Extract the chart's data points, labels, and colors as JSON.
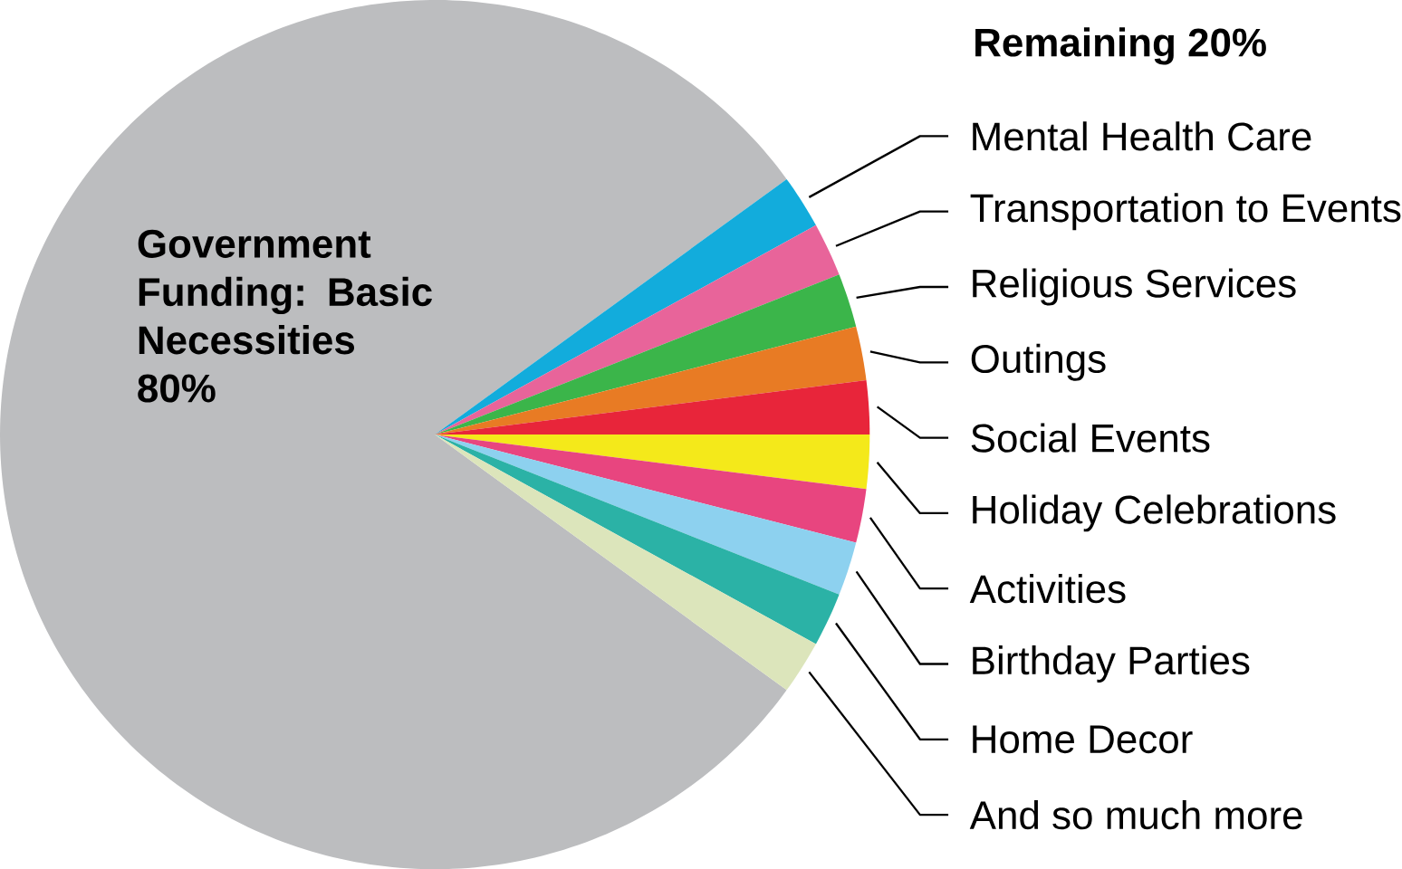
{
  "chart_data": {
    "type": "pie",
    "annotations": [
      "Remaining 20%"
    ],
    "categories": [
      "Government Funding: Basic Necessities",
      "Mental Health Care",
      "Transportation to Events",
      "Religious Services",
      "Outings",
      "Social Events",
      "Holiday Celebrations",
      "Activities",
      "Birthday Parties",
      "Home Decor",
      "And so much more"
    ],
    "values": [
      80,
      2,
      2,
      2,
      2,
      2,
      2,
      2,
      2,
      2,
      2
    ],
    "value_labels": [
      "80%",
      null,
      null,
      null,
      null,
      null,
      null,
      null,
      null,
      null,
      null
    ],
    "colors": [
      "#bcbdbf",
      "#12acdc",
      "#e8649a",
      "#3bb54a",
      "#e87b24",
      "#e8253a",
      "#f4e91a",
      "#e8457f",
      "#8dd1ef",
      "#2bb2a6",
      "#dce5bb"
    ]
  }
}
